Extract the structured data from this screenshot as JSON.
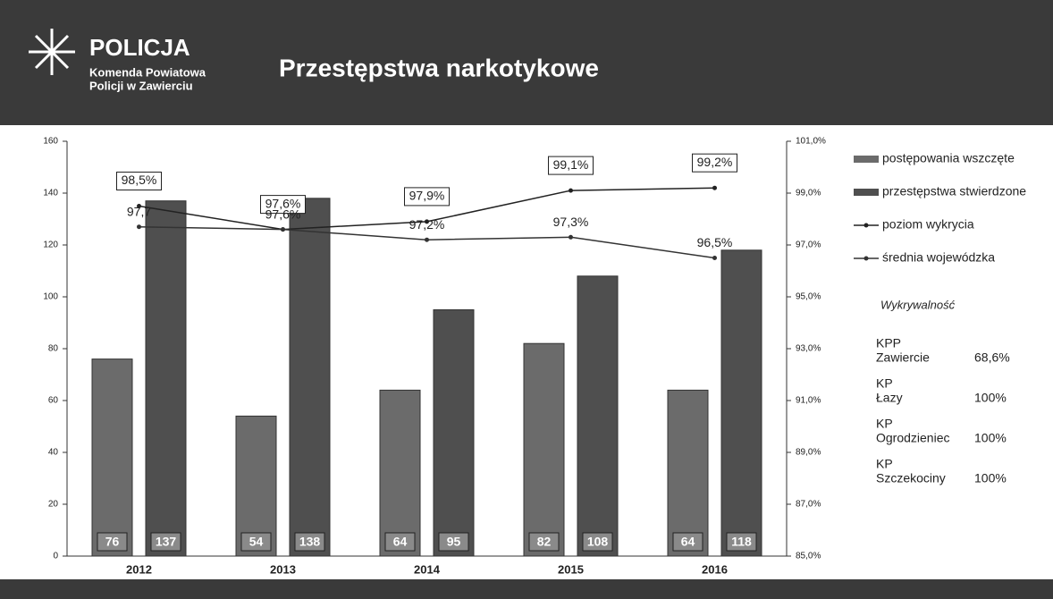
{
  "header": {
    "logo": "POLICJA",
    "unit_line1": "Komenda Powiatowa",
    "unit_line2": "Policji w Zawierciu",
    "title": "Przestępstwa narkotykowe"
  },
  "chart_data": {
    "type": "bar",
    "categories": [
      "2012",
      "2013",
      "2014",
      "2015",
      "2016"
    ],
    "series": [
      {
        "name": "postępowania wszczęte",
        "color": "#6b6b6b",
        "values": [
          76,
          54,
          64,
          82,
          64
        ]
      },
      {
        "name": "przestępstwa stwierdzone",
        "color": "#4f4f4f",
        "values": [
          137,
          138,
          95,
          108,
          118
        ]
      },
      {
        "name": "poziom wykrycia",
        "type": "line",
        "axis": "y2",
        "color": "#222",
        "boxed": true,
        "values": [
          98.5,
          97.6,
          97.9,
          99.1,
          99.2
        ],
        "value_labels": [
          "98,5%",
          "97,6%",
          "97,9%",
          "99,1%",
          "99,2%"
        ]
      },
      {
        "name": "średnia wojewódzka",
        "type": "line",
        "axis": "y2",
        "color": "#333",
        "boxed": false,
        "values": [
          97.7,
          97.6,
          97.2,
          97.3,
          96.5
        ],
        "value_labels": [
          "97,7",
          "97,6%",
          "97,2%",
          "97,3%",
          "96,5%"
        ]
      }
    ],
    "ylim": [
      0,
      160
    ],
    "yticks": [
      0,
      20,
      40,
      60,
      80,
      100,
      120,
      140,
      160
    ],
    "y2lim": [
      85,
      101
    ],
    "y2ticks": [
      {
        "value": 85,
        "label": "85,0%"
      },
      {
        "value": 87,
        "label": "87,0%"
      },
      {
        "value": 89,
        "label": "89,0%"
      },
      {
        "value": 91,
        "label": "91,0%"
      },
      {
        "value": 93,
        "label": "93,0%"
      },
      {
        "value": 95,
        "label": "95,0%"
      },
      {
        "value": 97,
        "label": "97,0%"
      },
      {
        "value": 99,
        "label": "99,0%"
      },
      {
        "value": 101,
        "label": "101,0%"
      }
    ],
    "legend": "right",
    "grid": false
  },
  "side_table": {
    "title": "Wykrywalność",
    "rows": [
      [
        "KPP",
        "Zawiercie",
        "68,6%"
      ],
      [
        "KP",
        "Łazy",
        "100%"
      ],
      [
        "KP",
        "Ogrodzieniec",
        "100%"
      ],
      [
        "KP",
        "Szczekociny",
        "100%"
      ]
    ]
  }
}
